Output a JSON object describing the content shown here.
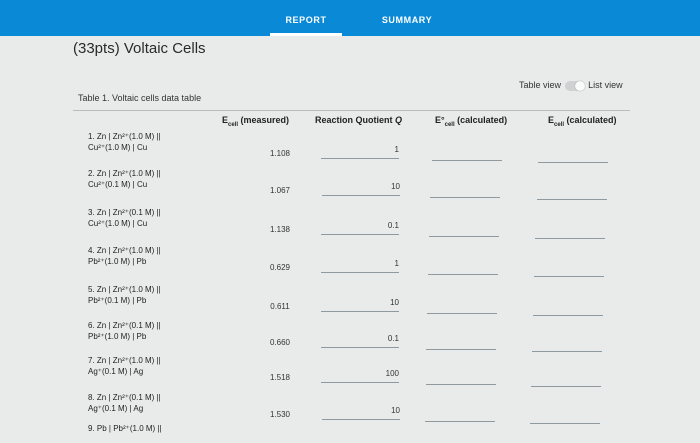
{
  "tabs": [
    {
      "label": "REPORT",
      "active": true
    },
    {
      "label": "SUMMARY",
      "active": false
    }
  ],
  "page_title": "(33pts) Voltaic Cells",
  "view_toggle": {
    "table_view": "Table view",
    "list_view": "List view"
  },
  "table_title": "Table 1. Voltaic cells data table",
  "columns": [
    {
      "main": "E",
      "sub": "cell",
      "rest": " (measured)"
    },
    {
      "main": "Reaction Quotient ",
      "sub": "",
      "rest": "Q"
    },
    {
      "main": "E°",
      "sub": "cell",
      "rest": " (calculated)"
    },
    {
      "main": "E",
      "sub": "cell",
      "rest": " (calculated)"
    }
  ],
  "rows": [
    {
      "line1": "1. Zn | Zn²⁺(1.0 M) ||",
      "line2": "Cu²⁺(1.0 M) | Cu",
      "ecell": "1.108",
      "q": "1"
    },
    {
      "line1": "2. Zn | Zn²⁺(1.0 M) ||",
      "line2": "Cu²⁺(0.1 M) | Cu",
      "ecell": "1.067",
      "q": "10"
    },
    {
      "line1": "3. Zn | Zn²⁺(0.1 M) ||",
      "line2": "Cu²⁺(1.0 M) | Cu",
      "ecell": "1.138",
      "q": "0.1"
    },
    {
      "line1": "4. Zn | Zn²⁺(1.0 M) ||",
      "line2": "Pb²⁺(1.0 M) | Pb",
      "ecell": "0.629",
      "q": "1"
    },
    {
      "line1": "5. Zn | Zn²⁺(1.0 M) ||",
      "line2": "Pb²⁺(0.1 M) | Pb",
      "ecell": "0.611",
      "q": "10"
    },
    {
      "line1": "6. Zn | Zn²⁺(0.1 M) ||",
      "line2": "Pb²⁺(1.0 M) | Pb",
      "ecell": "0.660",
      "q": "0.1"
    },
    {
      "line1": "7. Zn | Zn²⁺(1.0 M) ||",
      "line2": "Ag⁺(0.1 M) | Ag",
      "ecell": "1.518",
      "q": "100"
    },
    {
      "line1": "8. Zn | Zn²⁺(0.1 M) ||",
      "line2": "Ag⁺(0.1 M) | Ag",
      "ecell": "1.530",
      "q": "10"
    },
    {
      "line1": "9. Pb | Pb²⁺(1.0 M) ||",
      "line2": "",
      "ecell": "",
      "q": ""
    }
  ],
  "colors": {
    "topbar": "#0a89d6",
    "background": "#e9ebea"
  }
}
